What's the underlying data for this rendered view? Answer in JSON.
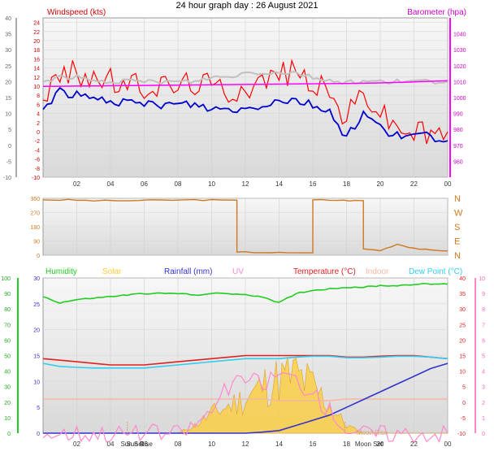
{
  "title": "24 hour graph day : 26 August 2021",
  "colors": {
    "wind_avg": "#0000cc",
    "gust": "#ff0000",
    "gray_avg": "#c0c0c0",
    "barometer": "#ff00ff",
    "direction": "#d07820",
    "humidity": "#22cc22",
    "solar": "#ffcc33",
    "rainfall": "#3333cc",
    "uv": "#ff88cc",
    "temperature": "#dd2222",
    "indoor": "#f4b8a0",
    "dewpoint": "#33ccee",
    "panel_bg": "#efefef",
    "grid": "#d4d4d4"
  },
  "x_ticks": [
    "02",
    "04",
    "06",
    "08",
    "10",
    "12",
    "14",
    "16",
    "18",
    "20",
    "22",
    "00"
  ],
  "chart_data": [
    {
      "type": "line",
      "panel": "wind",
      "left_axis": {
        "label": "Windspeed (kts)",
        "ticks": [
          "-10",
          "-8",
          "-6",
          "-4",
          "-2",
          "0",
          "2",
          "4",
          "6",
          "8",
          "10",
          "12",
          "14",
          "16",
          "18",
          "20",
          "22",
          "24"
        ],
        "ylim": [
          -10,
          25
        ]
      },
      "right_axis": {
        "label": "Barometer (hpa)",
        "ticks": [
          "960",
          "970",
          "980",
          "990",
          "1000",
          "1010",
          "1020",
          "1030",
          "1040"
        ],
        "ylim": [
          950,
          1050
        ]
      },
      "outer_axis_ticks": [
        "-10",
        "-5",
        "0",
        "5",
        "10",
        "15",
        "20",
        "25",
        "30",
        "35",
        "40"
      ],
      "x_hours": [
        0,
        1,
        2,
        3,
        4,
        5,
        6,
        7,
        8,
        9,
        10,
        11,
        12,
        13,
        14,
        15,
        16,
        17,
        18,
        19,
        20,
        21,
        22,
        23,
        24
      ],
      "series": [
        {
          "key": "gust",
          "values": [
            8,
            12,
            13,
            12,
            11,
            10,
            10,
            10,
            10,
            11,
            10,
            9,
            10,
            11,
            13,
            13,
            11,
            8,
            3,
            9,
            4,
            1,
            0,
            -1,
            0
          ]
        },
        {
          "key": "gray_avg",
          "values": [
            11,
            12,
            12,
            11,
            11,
            11,
            11,
            11,
            11,
            11,
            12,
            12,
            13,
            13,
            13,
            13,
            12,
            11,
            11,
            11,
            11,
            11,
            11,
            11,
            11
          ]
        },
        {
          "key": "wind_avg",
          "values": [
            5,
            9,
            8,
            7,
            7,
            6,
            6,
            6,
            6,
            6,
            5,
            5,
            5,
            6,
            7,
            7,
            6,
            4,
            -1,
            4,
            1,
            -1,
            -1,
            -1,
            -2
          ]
        },
        {
          "key": "barometer",
          "values": [
            1007,
            1007.1,
            1007.2,
            1007.3,
            1007.4,
            1007.5,
            1007.6,
            1007.7,
            1007.8,
            1007.9,
            1008,
            1008.1,
            1008.2,
            1008.3,
            1008.4,
            1008.5,
            1008.6,
            1008.7,
            1008.8,
            1009,
            1009.2,
            1009.5,
            1009.8,
            1010.2,
            1010.5
          ]
        }
      ]
    },
    {
      "type": "line",
      "panel": "direction",
      "left_axis": {
        "ticks": [
          "0",
          "90",
          "180",
          "270",
          "360"
        ],
        "ylim": [
          0,
          360
        ]
      },
      "right_axis": {
        "ticks": [
          "N",
          "E",
          "S",
          "W",
          "N"
        ]
      },
      "series": [
        {
          "key": "direction",
          "points": [
            [
              0,
              350
            ],
            [
              1.5,
              350
            ],
            [
              3,
              345
            ],
            [
              5,
              345
            ],
            [
              7,
              348
            ],
            [
              9,
              350
            ],
            [
              10.5,
              348
            ],
            [
              11.5,
              20
            ],
            [
              13,
              18
            ],
            [
              14.5,
              15
            ],
            [
              16,
              350
            ],
            [
              17.5,
              348
            ],
            [
              18.5,
              345
            ],
            [
              19,
              40
            ],
            [
              20,
              30
            ],
            [
              21,
              70
            ],
            [
              22,
              45
            ],
            [
              23,
              30
            ],
            [
              24,
              30
            ]
          ]
        }
      ]
    },
    {
      "type": "line",
      "panel": "multi",
      "legend": [
        "Humidity",
        "Solar",
        "Rainfall (mm)",
        "UV",
        "Temperature (°C)",
        "Indoor",
        "Dew Point (°C)"
      ],
      "left_axis_humidity": {
        "ticks": [
          "0",
          "10",
          "20",
          "30",
          "40",
          "50",
          "60",
          "70",
          "80",
          "90",
          "100"
        ],
        "ylim": [
          0,
          100
        ]
      },
      "left_axis_rain": {
        "ticks": [
          "0",
          "5",
          "10",
          "15",
          "20",
          "25",
          "30"
        ],
        "ylim": [
          0,
          30
        ]
      },
      "right_axis_temp": {
        "ticks": [
          "-10",
          "-5",
          "0",
          "5",
          "10",
          "15",
          "20",
          "25",
          "30",
          "35",
          "40"
        ],
        "ylim": [
          -10,
          40
        ]
      },
      "right_axis_uv": {
        "ticks": [
          "0",
          "1",
          "2",
          "3",
          "4",
          "5",
          "6",
          "7",
          "8",
          "9",
          "10"
        ],
        "ylim": [
          0,
          10
        ]
      },
      "annotations": [
        "Sun Rise",
        "Sun Set",
        "Moon Rise",
        "Moon Set"
      ],
      "series": [
        {
          "key": "humidity",
          "values": [
            88,
            84,
            86,
            87,
            88,
            89,
            90,
            90,
            90,
            89,
            90,
            90,
            89,
            88,
            84,
            90,
            92,
            93,
            94,
            94,
            95,
            95,
            96,
            96,
            96
          ]
        },
        {
          "key": "indoor",
          "values": [
            22,
            22,
            22,
            22,
            22,
            22,
            22,
            22,
            22,
            22,
            22,
            22,
            22,
            22,
            21,
            21,
            21,
            21,
            22,
            22,
            22,
            22,
            22,
            22,
            22
          ]
        },
        {
          "key": "temperature",
          "values": [
            14,
            13.5,
            13,
            12.5,
            12,
            12,
            12,
            12.5,
            13,
            13.5,
            14,
            14.5,
            15,
            15,
            15,
            15,
            15,
            15,
            14.5,
            14.5,
            14.8,
            15,
            15,
            14.5,
            14
          ]
        },
        {
          "key": "dewpoint",
          "values": [
            12.5,
            11.5,
            11.2,
            11,
            11,
            11,
            11,
            11.5,
            12,
            12.5,
            13,
            13.5,
            14,
            14,
            14,
            14.5,
            14.8,
            14.8,
            14.3,
            14.3,
            14.5,
            14.8,
            14.8,
            14.5,
            14
          ]
        },
        {
          "key": "rainfall",
          "values": [
            0,
            0,
            0,
            0,
            0,
            0,
            0,
            0,
            0,
            0,
            0,
            0,
            0,
            0.2,
            0.5,
            1.5,
            2.5,
            3.5,
            5,
            6.5,
            8,
            9.5,
            11,
            12.5,
            13.5
          ]
        },
        {
          "key": "solar",
          "values": [
            0,
            0,
            0,
            0,
            0,
            0,
            0,
            0,
            0,
            0.1,
            0.25,
            0.35,
            0.45,
            0.6,
            0.7,
            0.75,
            0.6,
            0.35,
            0.1,
            0,
            0,
            0,
            0,
            0,
            0
          ]
        },
        {
          "key": "uv",
          "values": [
            0,
            0,
            0,
            0,
            0,
            0,
            0,
            0,
            0,
            0.5,
            1.5,
            3,
            3.5,
            3.2,
            3.8,
            3.5,
            2.5,
            1.5,
            0.3,
            0,
            0,
            0,
            0,
            0,
            0
          ]
        }
      ]
    }
  ]
}
